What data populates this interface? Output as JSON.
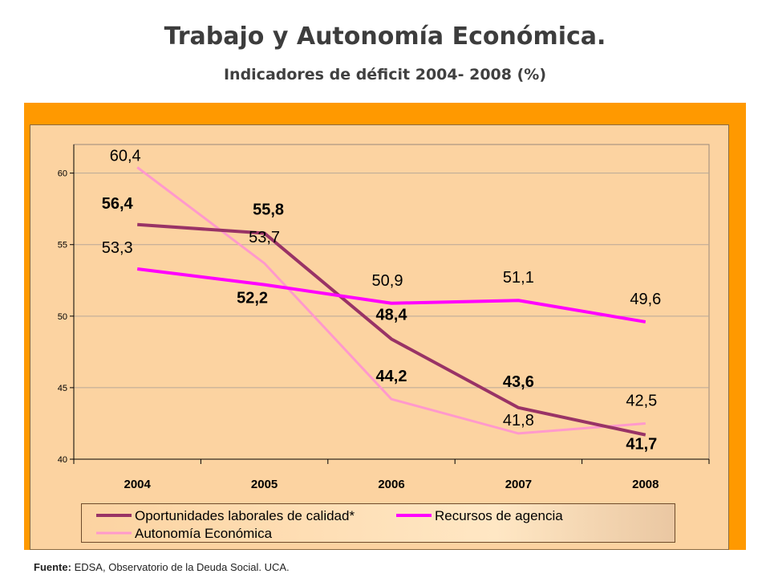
{
  "header": {
    "title": "Trabajo y Autonomía Económica.",
    "subtitle": "Indicadores de déficit 2004- 2008 (%)"
  },
  "footer": {
    "source_label": "Fuente:",
    "source_text": "EDSA, Observatorio de la Deuda Social. UCA."
  },
  "colors": {
    "frame": "#ff9900",
    "plot_bg": "#fcd3a1",
    "oportunidades": "#993366",
    "recursos": "#ff00ff",
    "autonomia": "#ff99cc"
  },
  "chart_data": {
    "type": "line",
    "categories": [
      "2004",
      "2005",
      "2006",
      "2007",
      "2008"
    ],
    "ylim": [
      40,
      62
    ],
    "yticks": [
      40,
      45,
      50,
      55,
      60
    ],
    "grid": true,
    "legend_position": "bottom",
    "series": [
      {
        "name": "Oportunidades laborales de calidad*",
        "color": "#993366",
        "values": [
          56.4,
          55.8,
          48.4,
          43.6,
          41.7
        ],
        "labels": [
          "56,4",
          "55,8",
          "48,4",
          "43,6",
          "41,7"
        ]
      },
      {
        "name": "Recursos de agencia",
        "color": "#ff00ff",
        "values": [
          53.3,
          52.2,
          50.9,
          51.1,
          49.6
        ],
        "labels": [
          "53,3",
          "52,2",
          "50,9",
          "51,1",
          "49,6"
        ]
      },
      {
        "name": "Autonomía Económica",
        "color": "#ff99cc",
        "values": [
          60.4,
          53.7,
          44.2,
          41.8,
          42.5
        ],
        "labels": [
          "60,4",
          "53,7",
          "44,2",
          "41,8",
          "42,5"
        ]
      }
    ]
  }
}
